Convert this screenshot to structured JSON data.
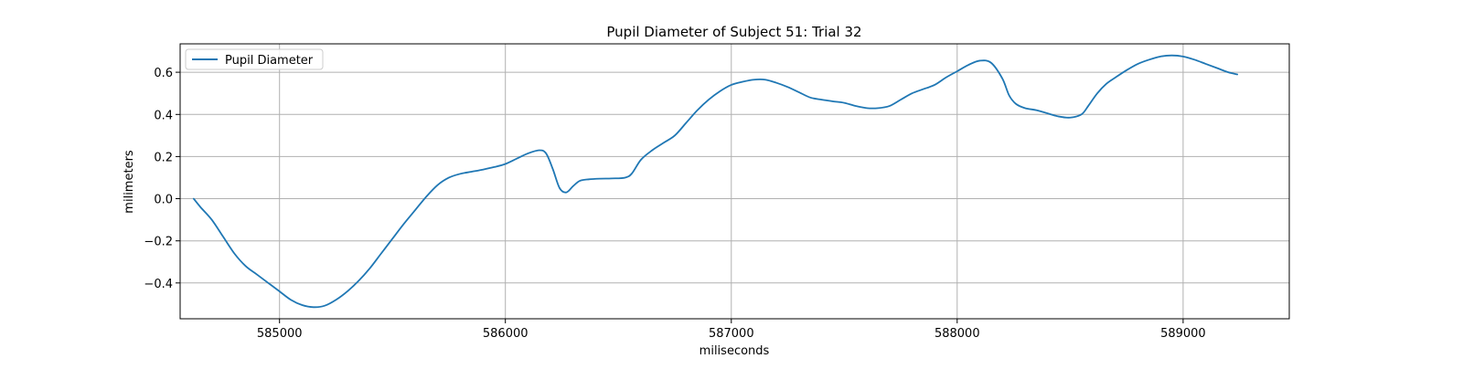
{
  "chart_data": {
    "type": "line",
    "title": "Pupil Diameter of Subject 51: Trial 32",
    "xlabel": "miliseconds",
    "ylabel": "milimeters",
    "xlim": [
      584560,
      589470
    ],
    "ylim": [
      -0.57,
      0.735
    ],
    "xticks": [
      585000,
      586000,
      587000,
      588000,
      589000
    ],
    "xtick_labels": [
      "585000",
      "586000",
      "587000",
      "588000",
      "589000"
    ],
    "yticks": [
      -0.4,
      -0.2,
      0.0,
      0.2,
      0.4,
      0.6
    ],
    "ytick_labels": [
      "−0.4",
      "−0.2",
      "0.0",
      "0.2",
      "0.4",
      "0.6"
    ],
    "grid": true,
    "legend_position": "upper left",
    "colors": {
      "series": "#1f77b4",
      "grid": "#b0b0b0",
      "axes": "#000000"
    },
    "series": [
      {
        "name": "Pupil Diameter",
        "x": [
          584620,
          584650,
          584700,
          584750,
          584800,
          584850,
          584900,
          584950,
          585000,
          585050,
          585100,
          585150,
          585200,
          585250,
          585300,
          585350,
          585400,
          585450,
          585500,
          585550,
          585600,
          585650,
          585700,
          585750,
          585800,
          585850,
          585900,
          585950,
          586000,
          586050,
          586100,
          586150,
          586180,
          586210,
          586240,
          586270,
          586300,
          586330,
          586370,
          586420,
          586470,
          586530,
          586560,
          586600,
          586650,
          586700,
          586750,
          586800,
          586850,
          586900,
          586950,
          587000,
          587050,
          587100,
          587150,
          587200,
          587250,
          587300,
          587350,
          587400,
          587450,
          587500,
          587550,
          587600,
          587650,
          587700,
          587750,
          587800,
          587850,
          587900,
          587950,
          588000,
          588050,
          588100,
          588150,
          588200,
          588230,
          588260,
          588300,
          588350,
          588400,
          588450,
          588500,
          588550,
          588580,
          588620,
          588660,
          588700,
          588750,
          588800,
          588850,
          588900,
          588950,
          589000,
          589050,
          589100,
          589150,
          589200,
          589240
        ],
        "y": [
          0.0,
          -0.04,
          -0.1,
          -0.18,
          -0.26,
          -0.32,
          -0.36,
          -0.4,
          -0.44,
          -0.48,
          -0.505,
          -0.515,
          -0.508,
          -0.48,
          -0.44,
          -0.39,
          -0.33,
          -0.26,
          -0.19,
          -0.12,
          -0.055,
          0.01,
          0.065,
          0.1,
          0.118,
          0.128,
          0.138,
          0.15,
          0.165,
          0.19,
          0.215,
          0.23,
          0.215,
          0.14,
          0.05,
          0.03,
          0.06,
          0.085,
          0.092,
          0.095,
          0.096,
          0.1,
          0.12,
          0.185,
          0.23,
          0.265,
          0.3,
          0.36,
          0.42,
          0.47,
          0.51,
          0.54,
          0.555,
          0.565,
          0.565,
          0.55,
          0.53,
          0.505,
          0.48,
          0.47,
          0.462,
          0.455,
          0.44,
          0.43,
          0.43,
          0.44,
          0.47,
          0.5,
          0.52,
          0.54,
          0.575,
          0.605,
          0.635,
          0.655,
          0.645,
          0.57,
          0.49,
          0.45,
          0.43,
          0.42,
          0.405,
          0.39,
          0.385,
          0.4,
          0.44,
          0.5,
          0.545,
          0.575,
          0.61,
          0.64,
          0.66,
          0.675,
          0.68,
          0.675,
          0.66,
          0.64,
          0.62,
          0.6,
          0.59
        ]
      }
    ]
  }
}
